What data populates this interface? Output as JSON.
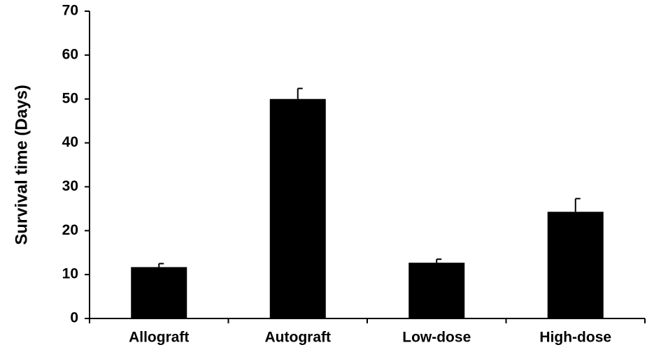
{
  "chart_data": {
    "type": "bar",
    "y_label": "Survival time (Days)",
    "categories": [
      "Allograft",
      "Autograft",
      "Low-dose",
      "High-dose"
    ],
    "values": [
      11.7,
      50,
      12.7,
      24.3
    ],
    "errors": [
      0.8,
      2.4,
      0.8,
      3.0
    ],
    "color": "#000000",
    "ylim": [
      0,
      70
    ],
    "yticks": [
      0,
      10,
      20,
      30,
      40,
      50,
      60,
      70
    ],
    "grid": false
  }
}
